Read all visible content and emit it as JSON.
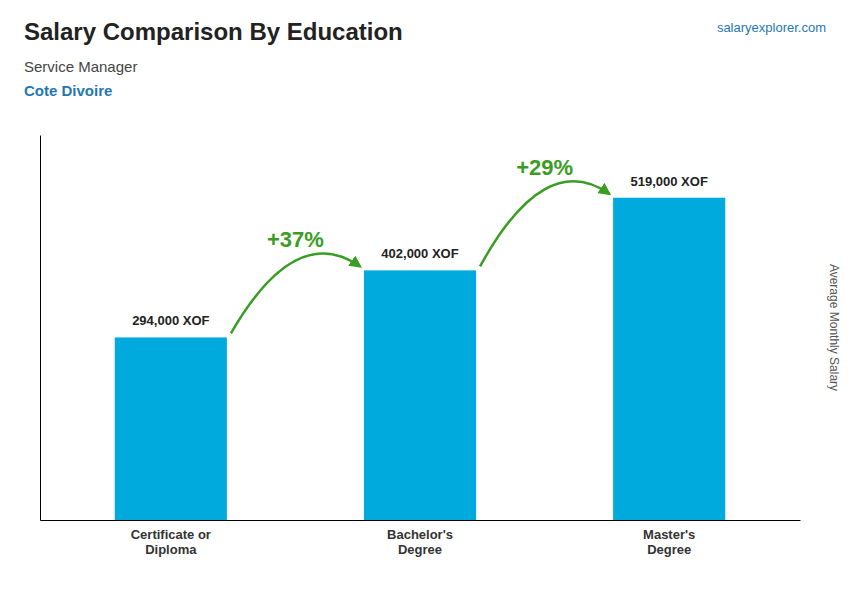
{
  "chart_data": {
    "type": "bar",
    "title": "Salary Comparison By Education",
    "subtitle": [
      "Service Manager",
      "Cote Divoire"
    ],
    "watermark": "salaryexplorer.com",
    "ylabel": "Average Monthly Salary",
    "categories": [
      "Certificate or\nDiploma",
      "Bachelor's\nDegree",
      "Master's\nDegree"
    ],
    "values": [
      294000,
      402000,
      519000
    ],
    "value_labels": [
      "294,000 XOF",
      "402,000 XOF",
      "519,000 XOF"
    ],
    "data_labels": true,
    "annotations": [
      "+37%",
      "+29%"
    ],
    "color": "#00aadd",
    "ylim": [
      0,
      620000
    ],
    "tick_labels": "x",
    "grid": false
  }
}
